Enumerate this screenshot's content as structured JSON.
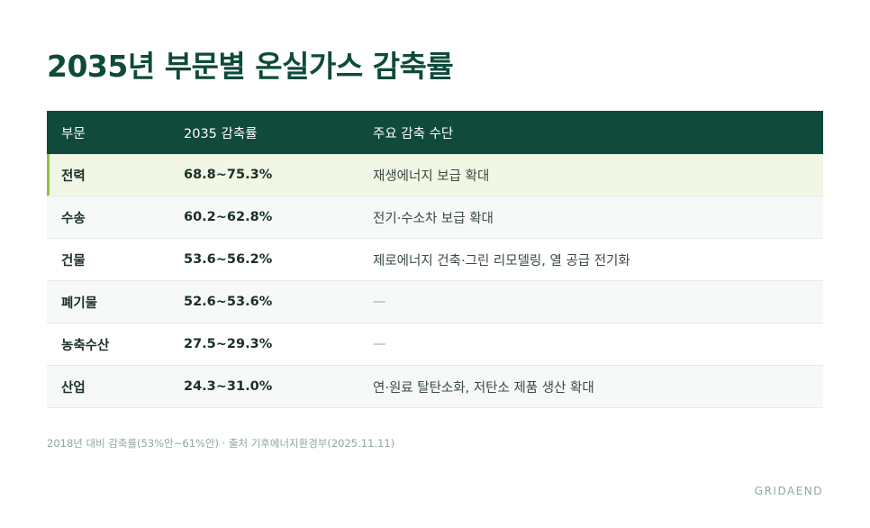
{
  "title": "2035년 부문별 온실가스 감축률",
  "table": {
    "headers": [
      "부문",
      "2035 감축률",
      "주요 감축 수단"
    ],
    "rows": [
      {
        "sector": "전력",
        "rate": "68.8~75.3%",
        "means": "재생에너지 보급 확대"
      },
      {
        "sector": "수송",
        "rate": "60.2~62.8%",
        "means": "전기·수소차 보급 확대"
      },
      {
        "sector": "건물",
        "rate": "53.6~56.2%",
        "means": "제로에너지 건축·그린 리모델링, 열 공급 전기화"
      },
      {
        "sector": "폐기물",
        "rate": "52.6~53.6%",
        "means": "—"
      },
      {
        "sector": "농축수산",
        "rate": "27.5~29.3%",
        "means": "—"
      },
      {
        "sector": "산업",
        "rate": "24.3~31.0%",
        "means": "연·원료 탈탄소화, 저탄소 제품 생산 확대"
      }
    ]
  },
  "footnote": "2018년 대비 감축률(53%안~61%안) · 출처 기후에너지환경부(2025.11.11)",
  "brand": "GRIDAEND",
  "colors": {
    "header_bg": "#0f4a3a",
    "highlight_bg": "#f1f7e4",
    "highlight_accent": "#8cc63f"
  }
}
